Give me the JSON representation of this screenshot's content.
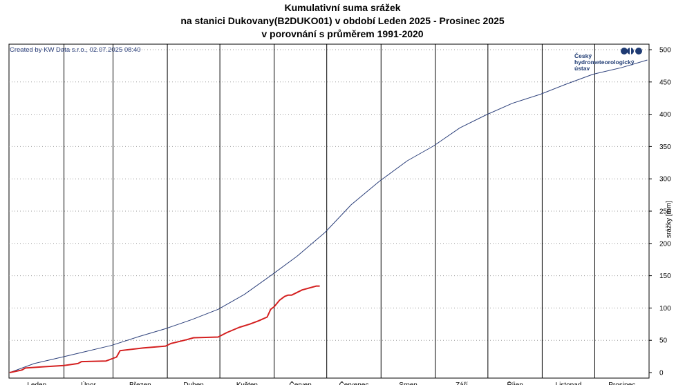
{
  "title_lines": [
    "Kumulativní suma srážek",
    "na stanici Dukovany(B2DUKO01) v období Leden 2025 - Prosinec 2025",
    "v porovnání s průměrem 1991-2020"
  ],
  "credit": "Created by KW Data s.r.o., 02.07.2025 08:40",
  "logo": {
    "lines": [
      "Český",
      "hydrometeorologický",
      "ústav"
    ],
    "color": "#1f3b73"
  },
  "chart_data": {
    "type": "line",
    "ylabel": "srážky [mm]",
    "ylim": [
      0,
      500
    ],
    "yticks": [
      0,
      50,
      100,
      150,
      200,
      250,
      300,
      350,
      400,
      450,
      500
    ],
    "y_axis_side": "right",
    "grid": "horizontal dotted",
    "months": [
      "Leden",
      "Únor",
      "Březen",
      "Duben",
      "Květen",
      "Červen",
      "Červenec",
      "Srpen",
      "Září",
      "Říjen",
      "Listopad",
      "Prosinec"
    ],
    "x_unit": "day of year 2025",
    "xlim": [
      1,
      365
    ],
    "series": [
      {
        "color": "#2b3f7a",
        "x": [
          1,
          15,
          31,
          45,
          59,
          75,
          90,
          105,
          120,
          135,
          151,
          165,
          181,
          196,
          212,
          228,
          243,
          258,
          273,
          288,
          304,
          319,
          334,
          350,
          365
        ],
        "values": [
          0,
          14,
          24,
          33,
          42,
          56,
          68,
          82,
          98,
          121,
          152,
          180,
          217,
          260,
          296,
          328,
          351,
          379,
          399,
          417,
          431,
          447,
          462,
          472,
          484
        ]
      },
      {
        "color": "#d42020",
        "x": [
          1,
          8,
          10,
          20,
          32,
          40,
          42,
          56,
          62,
          64,
          77,
          90,
          93,
          102,
          106,
          120,
          125,
          132,
          138,
          143,
          148,
          150,
          152,
          155,
          158,
          160,
          162,
          168,
          176,
          178
        ],
        "values": [
          0,
          4,
          7,
          9,
          11,
          14,
          17,
          18,
          24,
          34,
          38,
          41,
          45,
          51,
          54,
          55,
          62,
          70,
          75,
          80,
          86,
          98,
          102,
          112,
          118,
          120,
          120,
          128,
          134,
          134
        ]
      }
    ]
  }
}
